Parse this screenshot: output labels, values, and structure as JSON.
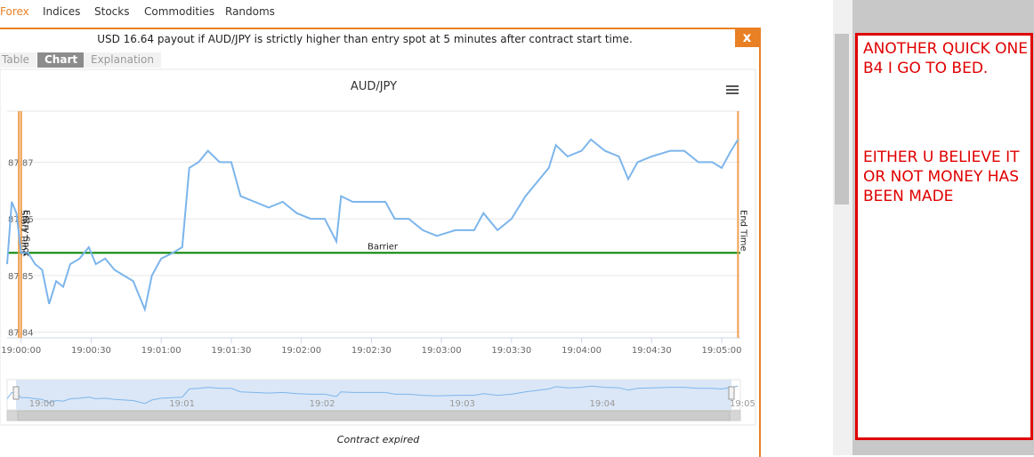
{
  "nav": {
    "tabs": [
      "Forex",
      "Indices",
      "Stocks",
      "Commodities",
      "Randoms"
    ]
  },
  "dialog": {
    "header": "USD 16.64 payout if AUD/JPY is strictly higher than entry spot at 5 minutes after contract start time.",
    "close": "x",
    "tabs": [
      "Table",
      "Chart",
      "Explanation"
    ],
    "footer": "Contract expired"
  },
  "chart_data": {
    "type": "line",
    "title": "AUD/JPY",
    "color": "#7cb5ec",
    "x": [
      "18:59:54",
      "18:59:56",
      "18:59:58",
      "19:00:00",
      "19:00:03",
      "19:00:06",
      "19:00:09",
      "19:00:12",
      "19:00:15",
      "19:00:18",
      "19:00:21",
      "19:00:25",
      "19:00:29",
      "19:00:32",
      "19:00:36",
      "19:00:40",
      "19:00:44",
      "19:00:48",
      "19:00:53",
      "19:00:56",
      "19:01:00",
      "19:01:05",
      "19:01:09",
      "19:01:12",
      "19:01:16",
      "19:01:20",
      "19:01:25",
      "19:01:30",
      "19:01:34",
      "19:01:40",
      "19:01:46",
      "19:01:52",
      "19:01:58",
      "19:02:04",
      "19:02:10",
      "19:02:15",
      "19:02:17",
      "19:02:22",
      "19:02:30",
      "19:02:36",
      "19:02:40",
      "19:02:46",
      "19:02:52",
      "19:02:58",
      "19:03:06",
      "19:03:14",
      "19:03:18",
      "19:03:24",
      "19:03:30",
      "19:03:36",
      "19:03:42",
      "19:03:46",
      "19:03:49",
      "19:03:54",
      "19:04:00",
      "19:04:04",
      "19:04:10",
      "19:04:16",
      "19:04:20",
      "19:04:24",
      "19:04:30",
      "19:04:38",
      "19:04:44",
      "19:04:50",
      "19:04:56",
      "19:05:00",
      "19:05:04",
      "19:05:07"
    ],
    "values": [
      87.852,
      87.863,
      87.861,
      87.854,
      87.854,
      87.852,
      87.851,
      87.845,
      87.849,
      87.848,
      87.852,
      87.853,
      87.855,
      87.852,
      87.853,
      87.851,
      87.85,
      87.849,
      87.844,
      87.85,
      87.853,
      87.854,
      87.855,
      87.869,
      87.87,
      87.872,
      87.87,
      87.87,
      87.864,
      87.863,
      87.862,
      87.863,
      87.861,
      87.86,
      87.86,
      87.856,
      87.864,
      87.863,
      87.863,
      87.863,
      87.86,
      87.86,
      87.858,
      87.857,
      87.858,
      87.858,
      87.861,
      87.858,
      87.86,
      87.864,
      87.867,
      87.869,
      87.873,
      87.871,
      87.872,
      87.874,
      87.872,
      87.871,
      87.867,
      87.87,
      87.871,
      87.872,
      87.872,
      87.87,
      87.87,
      87.869,
      87.872,
      87.874
    ],
    "xlim": [
      "18:59:54",
      "19:05:08"
    ],
    "xticks": [
      "19:00:00",
      "19:00:30",
      "19:01:00",
      "19:01:30",
      "19:02:00",
      "19:02:30",
      "19:03:00",
      "19:03:30",
      "19:04:00",
      "19:04:30",
      "19:05:00"
    ],
    "ylim": [
      87.839,
      87.879
    ],
    "yticks": [
      87.84,
      87.85,
      87.86,
      87.87
    ],
    "grid": true,
    "barrier": {
      "label": "Barrier",
      "value": 87.854,
      "color": "#008000"
    },
    "markers": [
      {
        "label": "Start Time",
        "x": "18:59:59",
        "color": "#f0a050"
      },
      {
        "label": "Entry Spot",
        "x": "19:00:00",
        "color": "#f0a050"
      },
      {
        "label": "End Time",
        "x": "19:05:07",
        "color": "#f0a050"
      }
    ]
  },
  "navigator": {
    "labels": [
      "19:00",
      "19:01",
      "19:02",
      "19:03",
      "19:04",
      "19:05"
    ]
  },
  "note": {
    "paragraphs": [
      "ANOTHER QUICK ONE B4 I GO TO BED.",
      "EITHER U BELIEVE IT OR NOT MONEY HAS BEEN MADE"
    ]
  }
}
